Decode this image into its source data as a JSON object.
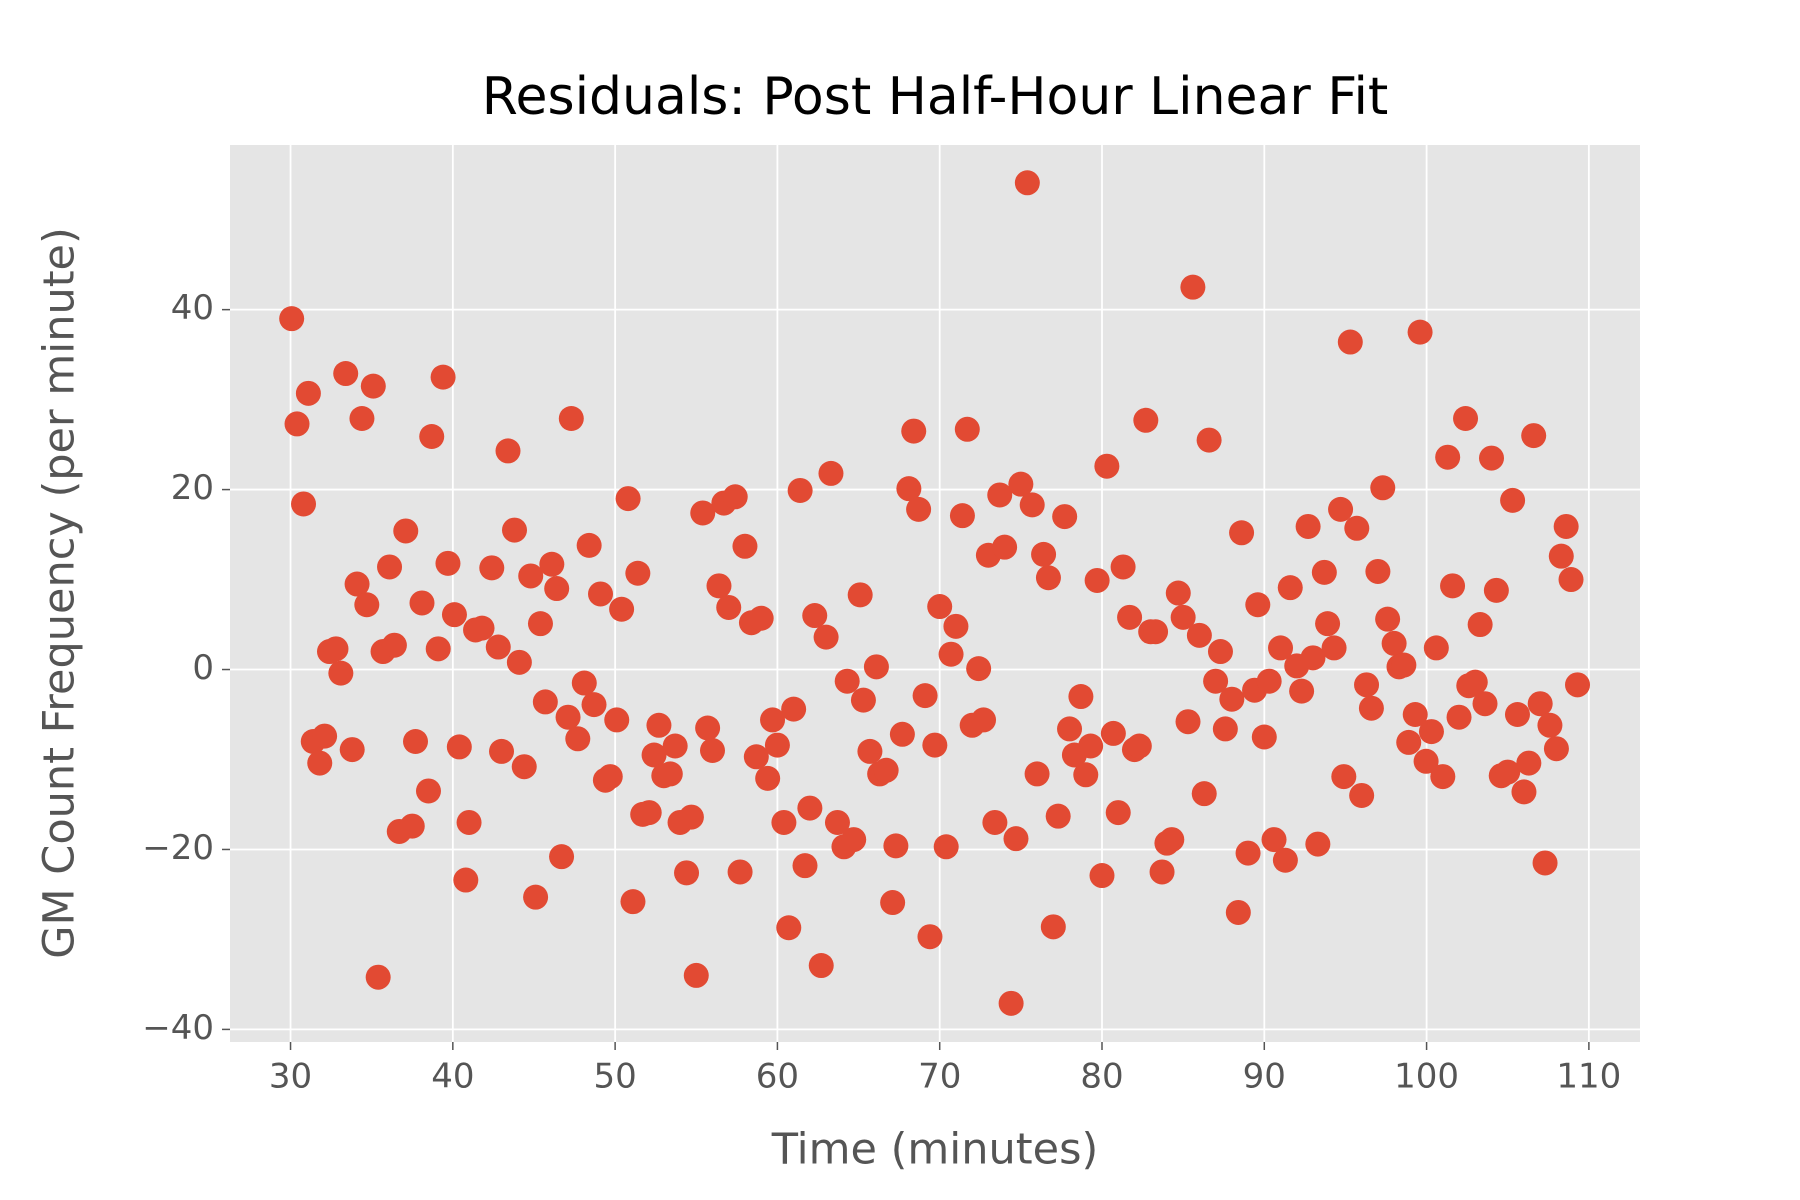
{
  "chart_data": {
    "type": "scatter",
    "title": "Residuals: Post Half-Hour Linear Fit",
    "xlabel": "Time (minutes)",
    "ylabel": "GM Count Frequency (per minute)",
    "color": "#e24a33",
    "grid": true,
    "xlim": [
      26.27,
      113.15
    ],
    "ylim": [
      -41.4,
      58.3
    ],
    "xticks": [
      30,
      40,
      50,
      60,
      70,
      80,
      90,
      100,
      110
    ],
    "yticks": [
      {
        "value": -40,
        "label": "−40"
      },
      {
        "value": -20,
        "label": "−20"
      },
      0,
      20,
      40
    ],
    "x": [
      30.07,
      30.4,
      30.8,
      31.1,
      31.4,
      31.8,
      32.1,
      32.4,
      32.8,
      33.1,
      33.4,
      33.8,
      34.1,
      34.4,
      34.7,
      35.1,
      35.4,
      35.7,
      36.1,
      36.4,
      36.7,
      37.1,
      37.5,
      37.7,
      38.1,
      38.5,
      38.7,
      39.1,
      39.4,
      39.7,
      40.1,
      40.4,
      40.8,
      41.0,
      41.4,
      41.8,
      42.4,
      42.8,
      43.0,
      43.4,
      43.8,
      44.1,
      44.4,
      44.8,
      45.1,
      45.4,
      45.7,
      46.1,
      46.4,
      46.7,
      47.1,
      47.3,
      47.7,
      48.1,
      48.4,
      48.7,
      49.1,
      49.4,
      49.7,
      50.1,
      50.4,
      50.8,
      51.1,
      51.4,
      51.7,
      52.1,
      52.4,
      52.7,
      53.0,
      53.4,
      53.7,
      54.0,
      54.4,
      54.7,
      55.0,
      55.4,
      55.7,
      56.0,
      56.4,
      56.7,
      57.0,
      57.4,
      57.7,
      58.0,
      58.4,
      58.7,
      59.0,
      59.4,
      59.7,
      60.0,
      60.4,
      60.7,
      61.0,
      61.4,
      61.7,
      62.0,
      62.3,
      62.7,
      63.0,
      63.3,
      63.7,
      64.1,
      64.3,
      64.7,
      65.1,
      65.3,
      65.7,
      66.1,
      66.3,
      66.7,
      67.1,
      67.3,
      67.7,
      68.1,
      68.4,
      68.7,
      69.1,
      69.4,
      69.7,
      70.0,
      70.4,
      70.7,
      71.0,
      71.4,
      71.7,
      72.0,
      72.4,
      72.7,
      73.0,
      73.4,
      73.7,
      74.0,
      74.4,
      74.7,
      75.0,
      75.4,
      75.7,
      76.0,
      76.4,
      76.7,
      77.0,
      77.3,
      77.7,
      78.0,
      78.3,
      78.7,
      79.0,
      79.3,
      79.7,
      80.0,
      80.3,
      80.7,
      81.0,
      81.3,
      81.7,
      82.0,
      82.3,
      82.7,
      83.0,
      83.3,
      83.7,
      84.0,
      84.3,
      84.7,
      85.0,
      85.3,
      85.6,
      86.0,
      86.3,
      86.6,
      87.0,
      87.3,
      87.6,
      88.0,
      88.4,
      88.6,
      89.0,
      89.4,
      89.6,
      90.0,
      90.3,
      90.6,
      91.0,
      91.3,
      91.6,
      92.0,
      92.3,
      92.7,
      93.0,
      93.3,
      93.7,
      93.9,
      94.3,
      94.7,
      94.9,
      95.3,
      95.7,
      96.0,
      96.3,
      96.6,
      97.0,
      97.3,
      97.6,
      98.0,
      98.3,
      98.6,
      98.9,
      99.3,
      99.6,
      99.97,
      100.3,
      100.6,
      101.0,
      101.3,
      101.6,
      102.0,
      102.4,
      102.6,
      103.0,
      103.3,
      103.6,
      104.0,
      104.3,
      104.6,
      105.0,
      105.3,
      105.6,
      106.0,
      106.3,
      106.6,
      107.0,
      107.3,
      107.6,
      108.0,
      108.3,
      108.6,
      108.9,
      109.3
    ],
    "values": [
      39.0,
      27.3,
      18.4,
      30.7,
      -8.0,
      -10.4,
      -7.4,
      2.0,
      2.3,
      -0.4,
      32.9,
      -8.9,
      9.5,
      27.9,
      7.2,
      31.5,
      -34.2,
      2.0,
      11.4,
      2.7,
      -18.0,
      15.4,
      -17.4,
      -8.0,
      7.4,
      -13.5,
      25.9,
      2.3,
      32.5,
      11.8,
      6.1,
      -8.6,
      -23.4,
      -17.0,
      4.4,
      4.6,
      11.3,
      2.5,
      -9.1,
      24.3,
      15.5,
      0.8,
      -10.8,
      10.4,
      -25.3,
      5.1,
      -3.6,
      11.7,
      9.0,
      -20.8,
      -5.3,
      27.9,
      -7.7,
      -1.5,
      13.8,
      -3.9,
      8.4,
      -12.3,
      -11.9,
      -5.6,
      6.7,
      19.0,
      -25.8,
      10.7,
      -16.1,
      -15.9,
      -9.5,
      -6.2,
      -11.8,
      -11.6,
      -8.5,
      -17.0,
      -22.6,
      -16.4,
      -34.0,
      17.4,
      -6.5,
      -9.0,
      9.3,
      18.5,
      6.9,
      19.2,
      -22.5,
      13.7,
      5.2,
      -9.7,
      5.7,
      -12.1,
      -5.6,
      -8.4,
      -17.0,
      -28.7,
      -4.4,
      19.9,
      -21.8,
      -15.4,
      6.0,
      -32.9,
      3.6,
      21.8,
      -17.0,
      -19.7,
      -1.3,
      -18.9,
      8.3,
      -3.4,
      -9.1,
      0.3,
      -11.6,
      -11.2,
      -25.9,
      -19.6,
      -7.2,
      20.1,
      26.5,
      17.8,
      -2.9,
      -29.7,
      -8.4,
      7.0,
      -19.7,
      1.7,
      4.8,
      17.1,
      26.7,
      -6.2,
      0.1,
      -5.6,
      12.7,
      -17.0,
      19.4,
      13.6,
      -37.1,
      -18.8,
      20.6,
      54.1,
      18.3,
      -11.6,
      12.8,
      10.2,
      -28.6,
      -16.3,
      17.0,
      -6.6,
      -9.5,
      -3.0,
      -11.7,
      -8.5,
      9.9,
      -22.9,
      22.6,
      -7.1,
      -15.9,
      11.4,
      5.8,
      -8.9,
      -8.5,
      27.7,
      4.2,
      4.2,
      -22.5,
      -19.3,
      -18.9,
      8.5,
      5.8,
      -5.8,
      42.5,
      3.8,
      -13.8,
      25.5,
      -1.3,
      2.0,
      -6.6,
      -3.3,
      -27.0,
      15.2,
      -20.4,
      -2.3,
      7.2,
      -7.5,
      -1.3,
      -18.9,
      2.4,
      -21.2,
      9.1,
      0.4,
      -2.4,
      15.9,
      1.3,
      -19.4,
      10.8,
      5.1,
      2.4,
      17.8,
      -11.9,
      36.4,
      15.7,
      -14.0,
      -1.7,
      -4.3,
      10.9,
      20.2,
      5.6,
      2.9,
      0.3,
      0.5,
      -8.1,
      -5.0,
      37.5,
      -10.2,
      -6.9,
      2.4,
      -11.9,
      23.6,
      9.3,
      -5.3,
      27.9,
      -1.8,
      -1.4,
      5.0,
      -3.8,
      23.5,
      8.8,
      -11.8,
      -11.4,
      18.8,
      -5.0,
      -13.6,
      -10.4,
      26.0,
      -3.8,
      -21.5,
      -6.2,
      -8.8,
      12.6,
      15.9,
      10.0,
      -1.7
    ]
  }
}
